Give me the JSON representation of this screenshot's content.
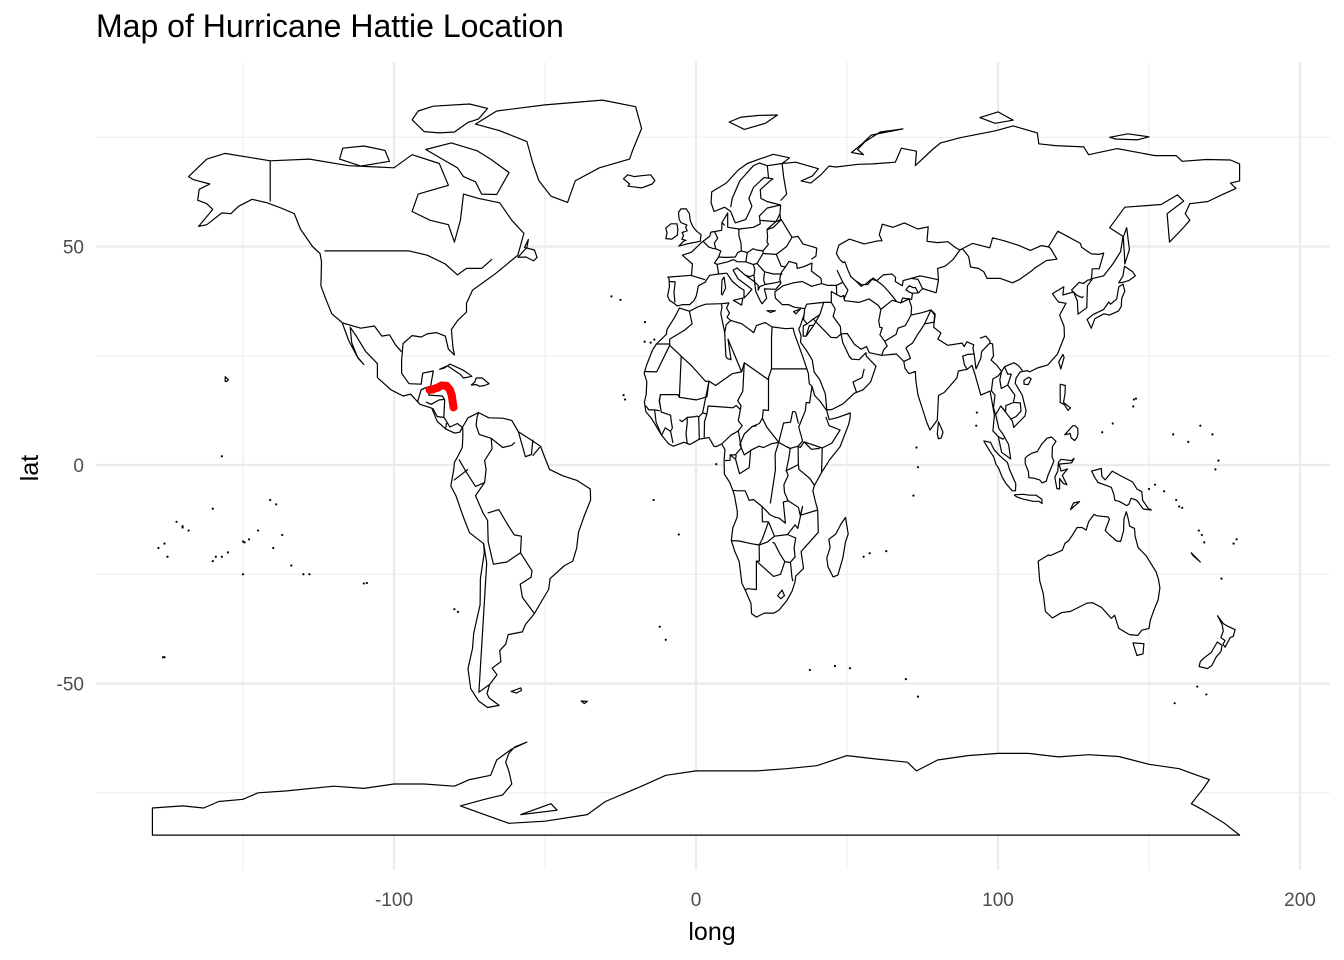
{
  "chart_data": {
    "type": "map",
    "title": "Map of Hurricane Hattie Location",
    "xlabel": "long",
    "ylabel": "lat",
    "xlim": [
      -189,
      210
    ],
    "ylim": [
      -91,
      92
    ],
    "x_major_ticks": [
      -100,
      0,
      100,
      200
    ],
    "x_minor_ticks": [
      -150,
      -50,
      50,
      150
    ],
    "y_major_ticks": [
      -50,
      0,
      50
    ],
    "y_minor_ticks": [
      -75,
      -25,
      25,
      75
    ],
    "x_tick_labels": [
      "-100",
      "0",
      "100",
      "200"
    ],
    "y_tick_labels": [
      "-50",
      "0",
      "50"
    ],
    "grid": true,
    "background": "#ffffff",
    "grid_color": "#ebebeb",
    "country_outline_color": "#000000",
    "track_color": "#ff0000",
    "track": [
      {
        "long": -80.3,
        "lat": 13.2
      },
      {
        "long": -80.6,
        "lat": 14.6
      },
      {
        "long": -80.9,
        "lat": 16.0
      },
      {
        "long": -81.5,
        "lat": 17.2
      },
      {
        "long": -82.6,
        "lat": 18.1
      },
      {
        "long": -84.2,
        "lat": 18.2
      },
      {
        "long": -85.6,
        "lat": 17.7
      },
      {
        "long": -87.2,
        "lat": 17.3
      },
      {
        "long": -88.2,
        "lat": 17.2
      }
    ]
  }
}
